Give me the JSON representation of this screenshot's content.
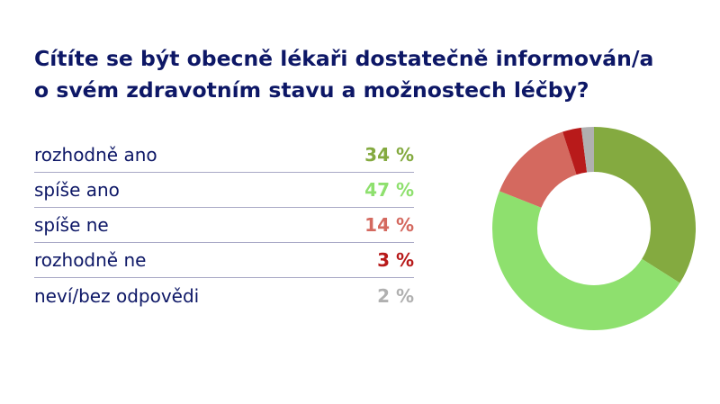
{
  "title_lines": [
    "Cítíte se být obecně lékaři dostatečně informován/a",
    "o svém zdravotním stavu a možnostech léčby?"
  ],
  "chart_data": {
    "type": "pie",
    "variant": "donut",
    "title": "Cítíte se být obecně lékaři dostatečně informován/a o svém zdravotním stavu a možnostech léčby?",
    "categories": [
      "rozhodně ano",
      "spíše ano",
      "spíše ne",
      "rozhodně ne",
      "neví/bez odpovědi"
    ],
    "values": [
      34,
      47,
      14,
      3,
      2
    ],
    "value_labels": [
      "34 %",
      "47 %",
      "14 %",
      "3 %",
      "2 %"
    ],
    "colors": [
      "#84aa40",
      "#8ee06e",
      "#d4695f",
      "#b81a1a",
      "#b0b0b0"
    ],
    "legend_placement": "left"
  }
}
